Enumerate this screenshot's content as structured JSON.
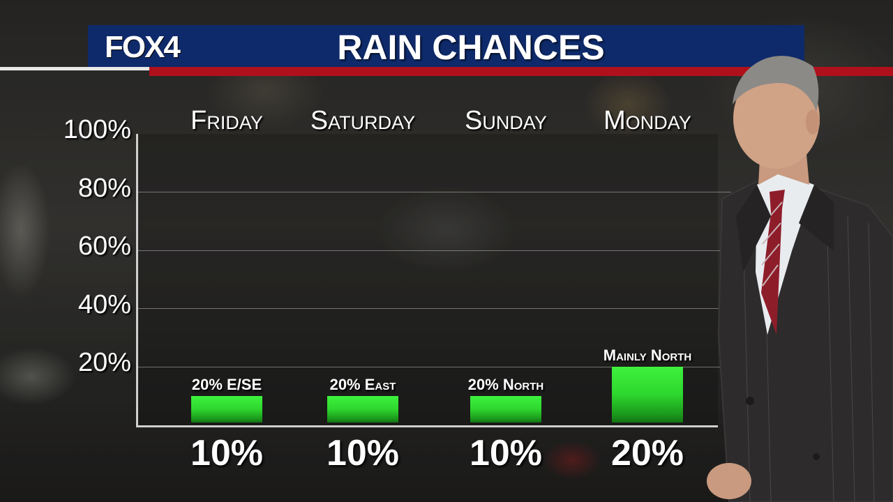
{
  "header": {
    "logo": "FOX4",
    "title": "RAIN CHANCES"
  },
  "colors": {
    "header_blue": "#0e2a6a",
    "stripe_red": "#b0101c",
    "bar_green": "#2ed62e"
  },
  "chart_data": {
    "type": "bar",
    "title": "RAIN CHANCES",
    "categories": [
      "Friday",
      "Saturday",
      "Sunday",
      "Monday"
    ],
    "values": [
      10,
      10,
      10,
      20
    ],
    "value_labels": [
      "10%",
      "10%",
      "10%",
      "20%"
    ],
    "bar_annotations": [
      "20% E/SE",
      "20% East",
      "20% North",
      "Mainly North"
    ],
    "yticks": [
      "20%",
      "40%",
      "60%",
      "80%",
      "100%"
    ],
    "ylim": [
      0,
      100
    ],
    "grid": true
  }
}
